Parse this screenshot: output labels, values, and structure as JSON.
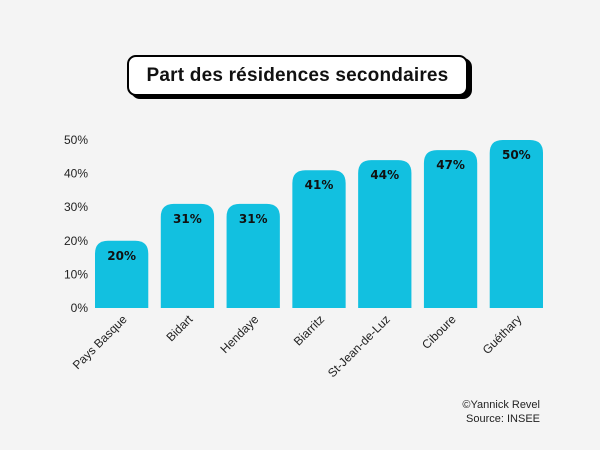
{
  "chart_data": {
    "type": "bar",
    "title": "Part des résidences secondaires",
    "categories": [
      "Pays Basque",
      "Bidart",
      "Hendaye",
      "Biarritz",
      "St-Jean-de-Luz",
      "Ciboure",
      "Guéthary"
    ],
    "values": [
      20,
      31,
      31,
      41,
      44,
      47,
      50
    ],
    "data_labels": [
      "20%",
      "31%",
      "31%",
      "41%",
      "44%",
      "47%",
      "50%"
    ],
    "ylim": [
      0,
      50
    ],
    "yticks": [
      0,
      10,
      20,
      30,
      40,
      50
    ],
    "ytick_labels": [
      "0%",
      "10%",
      "20%",
      "30%",
      "40%",
      "50%"
    ],
    "xlabel": "",
    "ylabel": "",
    "grid": false,
    "bar_color": "#12c0e0"
  },
  "credits": {
    "author": "©Yannick Revel",
    "source": "Source: INSEE"
  }
}
